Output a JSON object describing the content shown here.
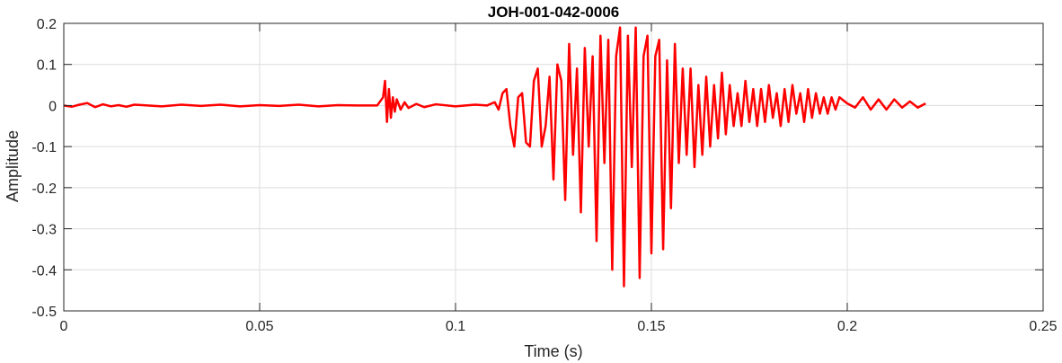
{
  "chart_data": {
    "type": "line",
    "title": "JOH-001-042-0006",
    "xlabel": "Time (s)",
    "ylabel": "Amplitude",
    "xlim": [
      0,
      0.25
    ],
    "ylim": [
      -0.5,
      0.2
    ],
    "x_ticks": [
      0,
      0.05,
      0.1,
      0.15,
      0.2,
      0.25
    ],
    "x_tick_labels": [
      "0",
      "0.05",
      "0.1",
      "0.15",
      "0.2",
      "0.25"
    ],
    "y_ticks": [
      0.2,
      0.1,
      0,
      -0.1,
      -0.2,
      -0.3,
      -0.4,
      -0.5
    ],
    "y_tick_labels": [
      "0.2",
      "0.1",
      "0",
      "-0.1",
      "-0.2",
      "-0.3",
      "-0.4",
      "-0.5"
    ],
    "grid": true,
    "series": [
      {
        "color": "#ff0000",
        "x": [
          0,
          0.002,
          0.004,
          0.006,
          0.008,
          0.01,
          0.012,
          0.014,
          0.016,
          0.018,
          0.02,
          0.025,
          0.03,
          0.035,
          0.04,
          0.045,
          0.05,
          0.055,
          0.06,
          0.065,
          0.07,
          0.075,
          0.08,
          0.0815,
          0.082,
          0.0825,
          0.083,
          0.0835,
          0.084,
          0.0845,
          0.085,
          0.086,
          0.087,
          0.088,
          0.09,
          0.092,
          0.095,
          0.1,
          0.105,
          0.108,
          0.11,
          0.111,
          0.112,
          0.113,
          0.114,
          0.115,
          0.116,
          0.117,
          0.118,
          0.119,
          0.12,
          0.121,
          0.122,
          0.123,
          0.124,
          0.125,
          0.126,
          0.127,
          0.128,
          0.129,
          0.13,
          0.131,
          0.132,
          0.133,
          0.134,
          0.135,
          0.136,
          0.137,
          0.138,
          0.139,
          0.14,
          0.141,
          0.142,
          0.143,
          0.144,
          0.145,
          0.146,
          0.147,
          0.148,
          0.149,
          0.15,
          0.151,
          0.152,
          0.153,
          0.154,
          0.155,
          0.156,
          0.157,
          0.158,
          0.159,
          0.16,
          0.161,
          0.162,
          0.163,
          0.164,
          0.165,
          0.166,
          0.167,
          0.168,
          0.169,
          0.17,
          0.171,
          0.172,
          0.173,
          0.174,
          0.175,
          0.176,
          0.177,
          0.178,
          0.179,
          0.18,
          0.181,
          0.182,
          0.183,
          0.184,
          0.185,
          0.186,
          0.187,
          0.188,
          0.189,
          0.19,
          0.191,
          0.192,
          0.193,
          0.194,
          0.195,
          0.196,
          0.197,
          0.198,
          0.2,
          0.202,
          0.204,
          0.206,
          0.208,
          0.21,
          0.212,
          0.214,
          0.216,
          0.218,
          0.22
        ],
        "y": [
          0,
          -0.003,
          0.002,
          0.006,
          -0.004,
          0.003,
          -0.002,
          0.001,
          -0.003,
          0.002,
          0.001,
          -0.002,
          0.002,
          -0.001,
          0.002,
          -0.002,
          0.001,
          -0.001,
          0.002,
          -0.002,
          0.001,
          0,
          0,
          0.02,
          0.06,
          -0.04,
          0.04,
          -0.03,
          0.02,
          -0.015,
          0.015,
          -0.01,
          0.008,
          -0.006,
          0.004,
          -0.004,
          0.003,
          -0.002,
          0.002,
          0,
          0.008,
          -0.01,
          0.03,
          0.04,
          -0.05,
          -0.1,
          0.02,
          0.03,
          -0.09,
          -0.1,
          0.06,
          0.09,
          -0.1,
          -0.05,
          0.07,
          -0.18,
          0.1,
          0.06,
          -0.23,
          0.15,
          -0.12,
          0.09,
          -0.26,
          0.14,
          -0.1,
          0.12,
          -0.33,
          0.17,
          -0.14,
          0.16,
          -0.4,
          0.12,
          0.19,
          -0.44,
          0.17,
          -0.15,
          0.19,
          -0.42,
          0.12,
          0.17,
          -0.36,
          0.12,
          0.16,
          -0.35,
          0.11,
          -0.25,
          0.15,
          -0.14,
          0.09,
          -0.12,
          0.09,
          -0.15,
          0.05,
          -0.12,
          0.07,
          -0.1,
          0.05,
          -0.08,
          0.08,
          -0.07,
          0.05,
          -0.05,
          0.03,
          -0.05,
          0.06,
          -0.04,
          0.04,
          -0.05,
          0.04,
          -0.04,
          0.05,
          -0.03,
          0.03,
          -0.05,
          0.04,
          -0.04,
          0.05,
          -0.02,
          0.03,
          -0.04,
          0.04,
          -0.03,
          0.03,
          -0.02,
          0.02,
          -0.02,
          0.02,
          -0.01,
          0.02,
          0.005,
          -0.005,
          0.02,
          -0.01,
          0.015,
          -0.01,
          0.015,
          -0.005,
          0.01,
          -0.005,
          0.005
        ]
      }
    ]
  }
}
